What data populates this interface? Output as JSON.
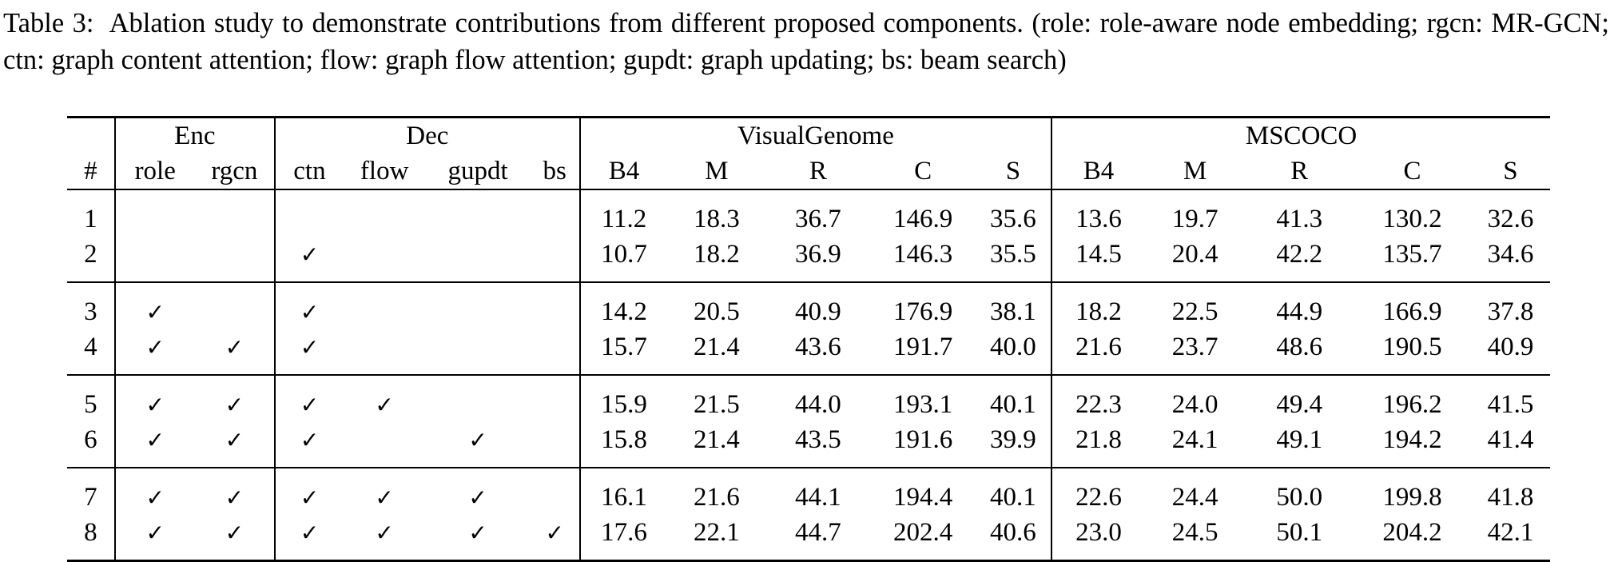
{
  "caption": {
    "label": "Table 3:  ",
    "text": "Ablation study to demonstrate contributions from different proposed components. (role: role-aware node embedding; rgcn: MR-GCN; ctn: graph content attention; flow: graph flow attention; gupdt: graph updating; bs: beam search)"
  },
  "header": {
    "enc": "Enc",
    "dec": "Dec",
    "vg": "VisualGenome",
    "coco": "MSCOCO",
    "cols": [
      "#",
      "role",
      "rgcn",
      "ctn",
      "flow",
      "gupdt",
      "bs",
      "B4",
      "M",
      "R",
      "C",
      "S",
      "B4",
      "M",
      "R",
      "C",
      "S"
    ]
  },
  "check_symbol": "✓",
  "rows": [
    {
      "id": "1",
      "role": "",
      "rgcn": "",
      "ctn": "",
      "flow": "",
      "gupdt": "",
      "bs": "",
      "vg": [
        "11.2",
        "18.3",
        "36.7",
        "146.9",
        "35.6"
      ],
      "coco": [
        "13.6",
        "19.7",
        "41.3",
        "130.2",
        "32.6"
      ]
    },
    {
      "id": "2",
      "role": "",
      "rgcn": "",
      "ctn": "✓",
      "flow": "",
      "gupdt": "",
      "bs": "",
      "vg": [
        "10.7",
        "18.2",
        "36.9",
        "146.3",
        "35.5"
      ],
      "coco": [
        "14.5",
        "20.4",
        "42.2",
        "135.7",
        "34.6"
      ]
    },
    {
      "id": "3",
      "role": "✓",
      "rgcn": "",
      "ctn": "✓",
      "flow": "",
      "gupdt": "",
      "bs": "",
      "vg": [
        "14.2",
        "20.5",
        "40.9",
        "176.9",
        "38.1"
      ],
      "coco": [
        "18.2",
        "22.5",
        "44.9",
        "166.9",
        "37.8"
      ]
    },
    {
      "id": "4",
      "role": "✓",
      "rgcn": "✓",
      "ctn": "✓",
      "flow": "",
      "gupdt": "",
      "bs": "",
      "vg": [
        "15.7",
        "21.4",
        "43.6",
        "191.7",
        "40.0"
      ],
      "coco": [
        "21.6",
        "23.7",
        "48.6",
        "190.5",
        "40.9"
      ]
    },
    {
      "id": "5",
      "role": "✓",
      "rgcn": "✓",
      "ctn": "✓",
      "flow": "✓",
      "gupdt": "",
      "bs": "",
      "vg": [
        "15.9",
        "21.5",
        "44.0",
        "193.1",
        "40.1"
      ],
      "coco": [
        "22.3",
        "24.0",
        "49.4",
        "196.2",
        "41.5"
      ]
    },
    {
      "id": "6",
      "role": "✓",
      "rgcn": "✓",
      "ctn": "✓",
      "flow": "",
      "gupdt": "✓",
      "bs": "",
      "vg": [
        "15.8",
        "21.4",
        "43.5",
        "191.6",
        "39.9"
      ],
      "coco": [
        "21.8",
        "24.1",
        "49.1",
        "194.2",
        "41.4"
      ]
    },
    {
      "id": "7",
      "role": "✓",
      "rgcn": "✓",
      "ctn": "✓",
      "flow": "✓",
      "gupdt": "✓",
      "bs": "",
      "vg": [
        "16.1",
        "21.6",
        "44.1",
        "194.4",
        "40.1"
      ],
      "coco": [
        "22.6",
        "24.4",
        "50.0",
        "199.8",
        "41.8"
      ]
    },
    {
      "id": "8",
      "role": "✓",
      "rgcn": "✓",
      "ctn": "✓",
      "flow": "✓",
      "gupdt": "✓",
      "bs": "✓",
      "vg": [
        "17.6",
        "22.1",
        "44.7",
        "202.4",
        "40.6"
      ],
      "coco": [
        "23.0",
        "24.5",
        "50.1",
        "204.2",
        "42.1"
      ],
      "bold": true
    }
  ]
}
